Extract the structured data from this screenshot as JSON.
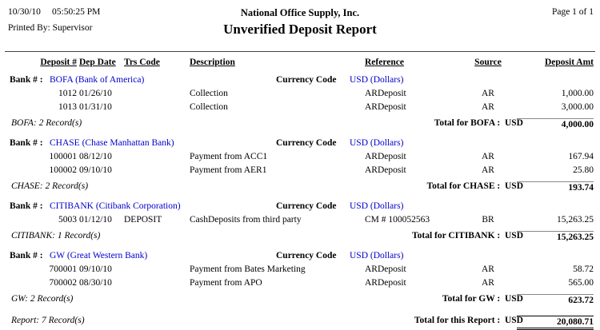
{
  "accent_color": "#0000cc",
  "header": {
    "date": "10/30/10",
    "time": "05:50:25 PM",
    "printed_by": "Printed By: Supervisor",
    "company": "National Office Supply, Inc.",
    "title": "Unverified Deposit Report",
    "page": "Page 1 of 1"
  },
  "columns": [
    "Deposit #",
    "Dep Date",
    "Trs Code",
    "Description",
    "Reference",
    "Source",
    "Deposit Amt"
  ],
  "labels": {
    "bank": "Bank # :",
    "currency": "Currency Code"
  },
  "groups": [
    {
      "bank": "BOFA (Bank of America)",
      "currency": "USD (Dollars)",
      "rows": [
        {
          "deposit_no": "1012",
          "dep_date": "01/26/10",
          "trs_code": "",
          "description": "Collection",
          "reference": "ARDeposit",
          "source": "AR",
          "amount": "1,000.00"
        },
        {
          "deposit_no": "1013",
          "dep_date": "01/31/10",
          "trs_code": "",
          "description": "Collection",
          "reference": "ARDeposit",
          "source": "AR",
          "amount": "3,000.00"
        }
      ],
      "record_count": "BOFA: 2 Record(s)",
      "total_label": "Total for BOFA :  USD",
      "total": "4,000.00"
    },
    {
      "bank": "CHASE (Chase Manhattan Bank)",
      "currency": "USD (Dollars)",
      "rows": [
        {
          "deposit_no": "100001",
          "dep_date": "08/12/10",
          "trs_code": "",
          "description": "Payment from ACC1",
          "reference": "ARDeposit",
          "source": "AR",
          "amount": "167.94"
        },
        {
          "deposit_no": "100002",
          "dep_date": "09/10/10",
          "trs_code": "",
          "description": "Payment from AER1",
          "reference": "ARDeposit",
          "source": "AR",
          "amount": "25.80"
        }
      ],
      "record_count": "CHASE: 2 Record(s)",
      "total_label": "Total for CHASE :  USD",
      "total": "193.74"
    },
    {
      "bank": "CITIBANK (Citibank Corporation)",
      "currency": "USD (Dollars)",
      "rows": [
        {
          "deposit_no": "5003",
          "dep_date": "01/12/10",
          "trs_code": "DEPOSIT",
          "description": "CashDeposits from third party",
          "reference": "CM # 100052563",
          "source": "BR",
          "amount": "15,263.25"
        }
      ],
      "record_count": "CITIBANK: 1 Record(s)",
      "total_label": "Total for CITIBANK :  USD",
      "total": "15,263.25"
    },
    {
      "bank": "GW (Great Western Bank)",
      "currency": "USD (Dollars)",
      "rows": [
        {
          "deposit_no": "700001",
          "dep_date": "09/10/10",
          "trs_code": "",
          "description": "Payment from Bates Marketing",
          "reference": "ARDeposit",
          "source": "AR",
          "amount": "58.72"
        },
        {
          "deposit_no": "700002",
          "dep_date": "08/30/10",
          "trs_code": "",
          "description": "Payment from APO",
          "reference": "ARDeposit",
          "source": "AR",
          "amount": "565.00"
        }
      ],
      "record_count": "GW: 2 Record(s)",
      "total_label": "Total for GW :  USD",
      "total": "623.72"
    }
  ],
  "report_footer": {
    "record_count": "Report: 7 Record(s)",
    "total_label": "Total for this Report :  USD",
    "total": "20,080.71"
  }
}
